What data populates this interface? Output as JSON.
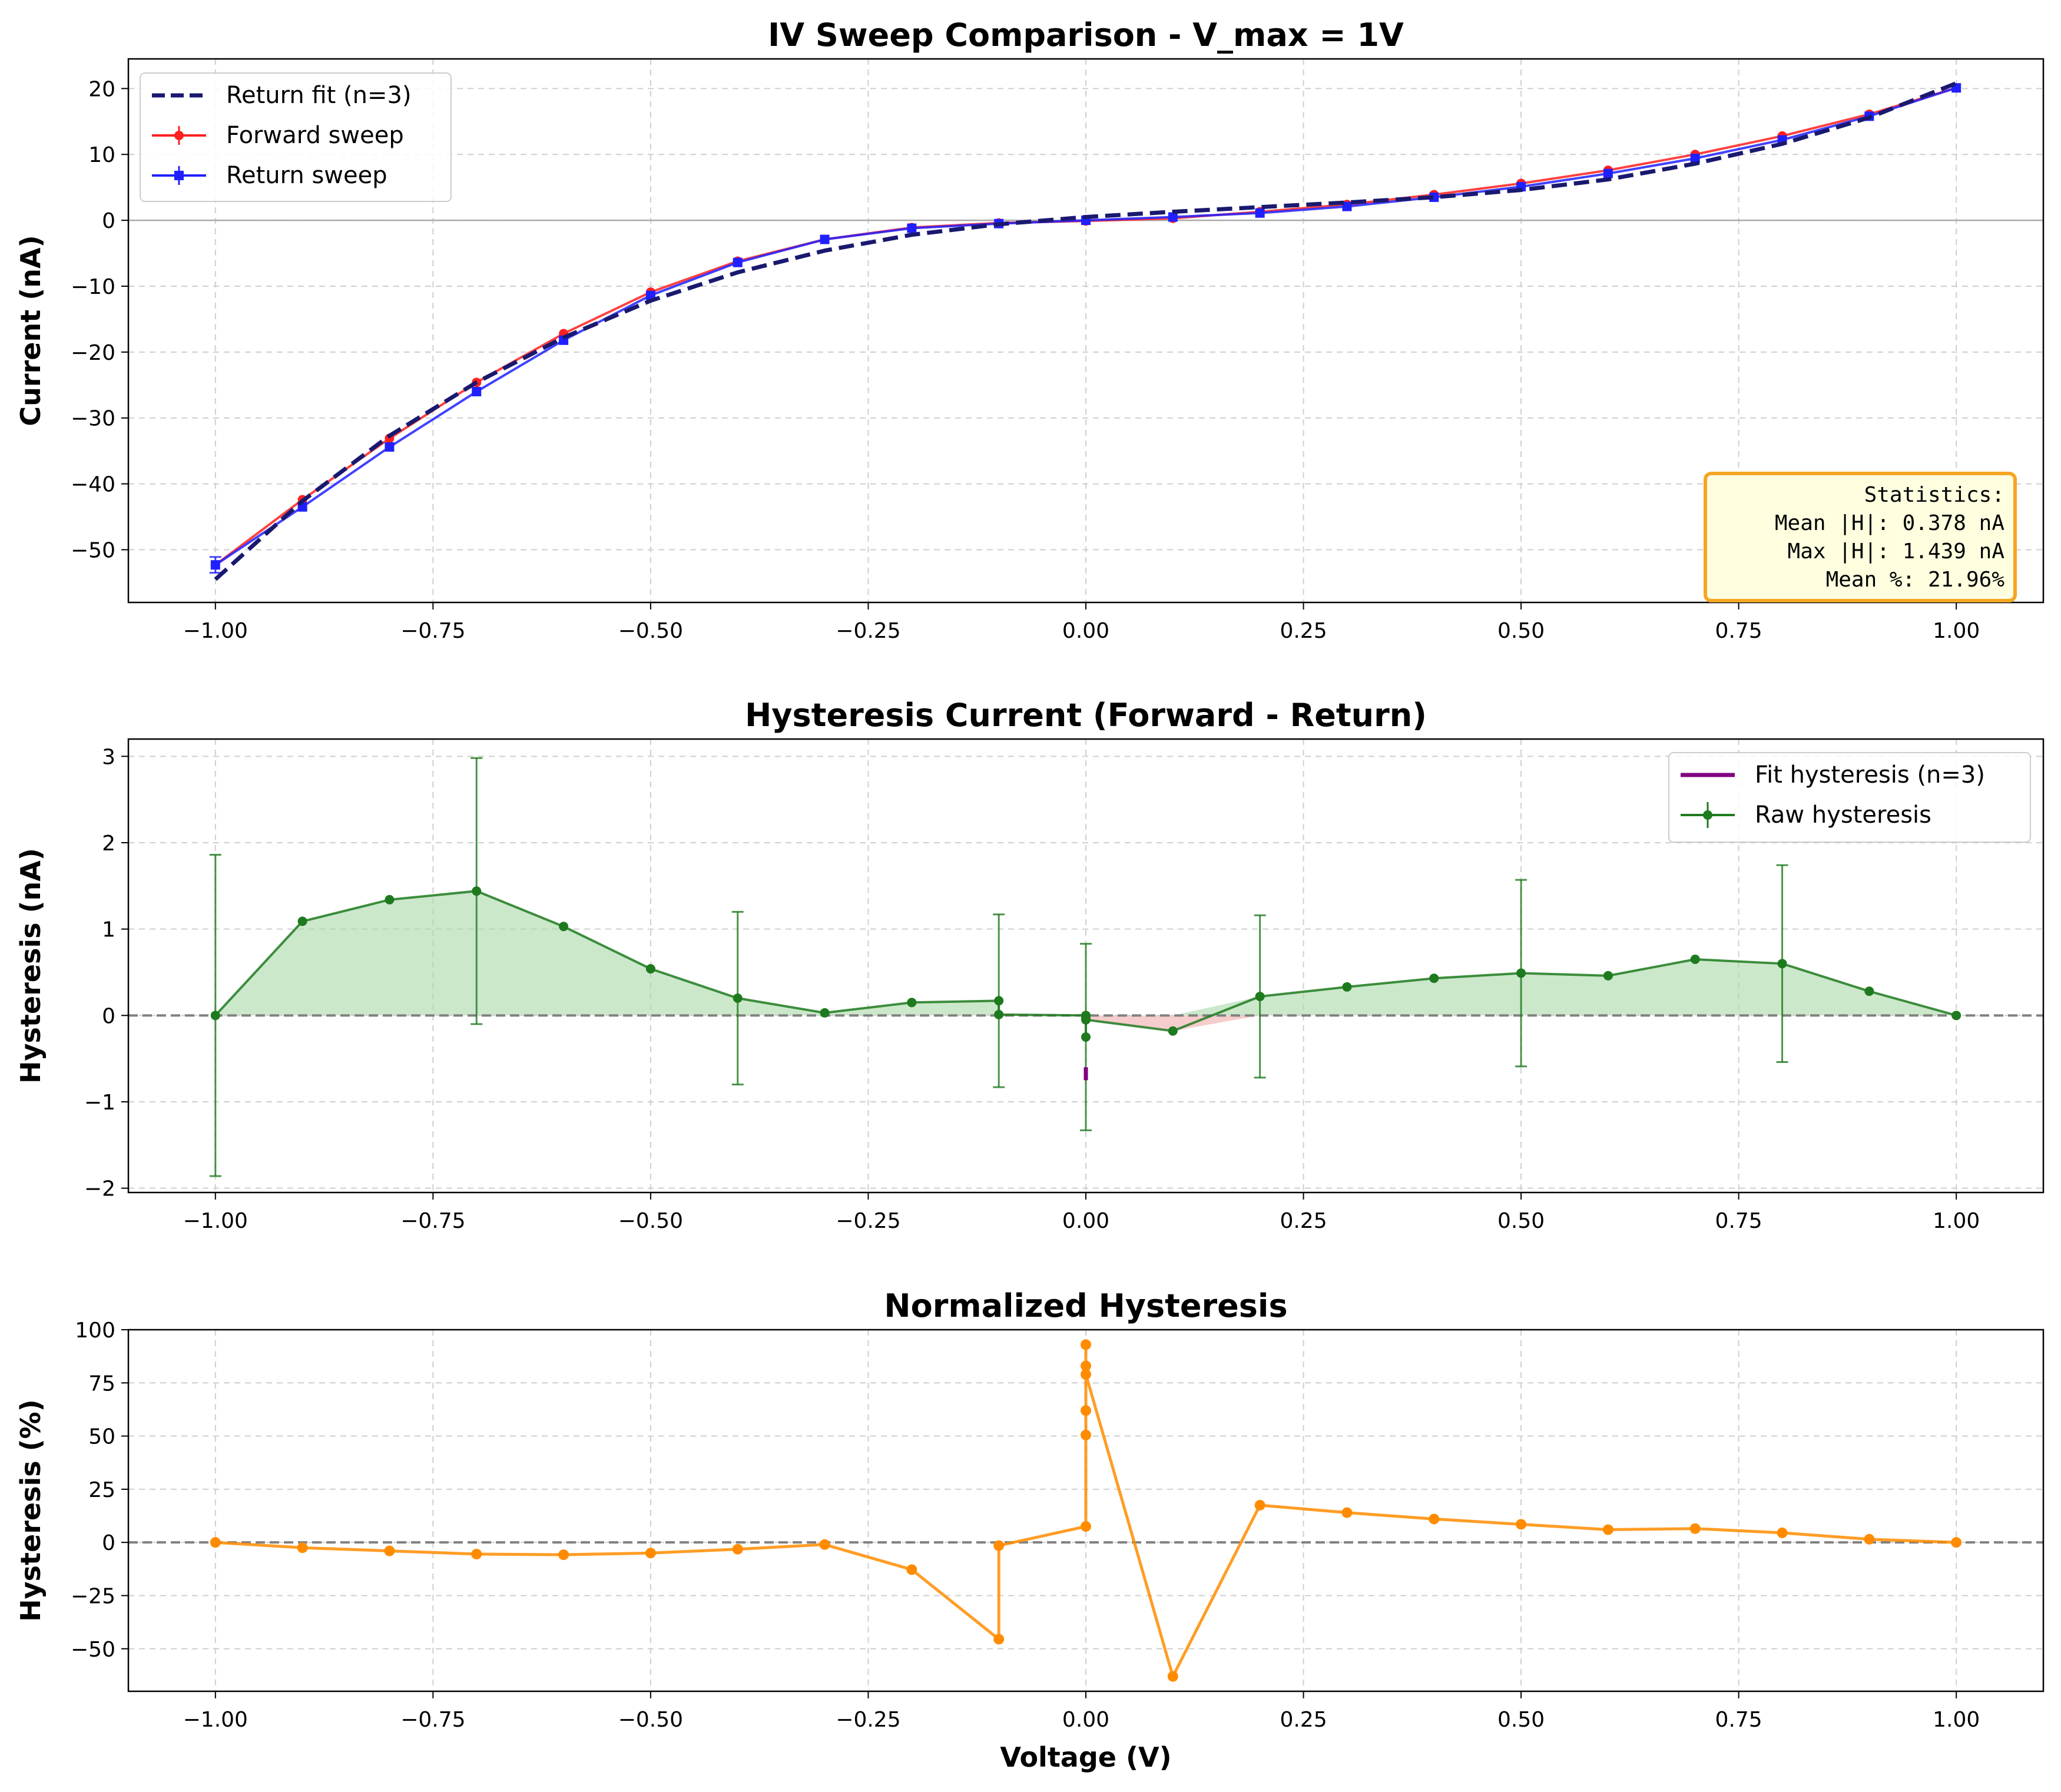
{
  "chart_data": [
    {
      "type": "line",
      "title": "IV Sweep Comparison - V_max = 1V",
      "xlabel": "",
      "ylabel": "Current (nA)",
      "xlim": [
        -1.1,
        1.1
      ],
      "ylim": [
        -58,
        24.5
      ],
      "xticks": [
        -1.0,
        -0.75,
        -0.5,
        -0.25,
        0.0,
        0.25,
        0.5,
        0.75,
        1.0
      ],
      "xtick_labels": [
        "−1.00",
        "−0.75",
        "−0.50",
        "−0.25",
        "0.00",
        "0.25",
        "0.50",
        "0.75",
        "1.00"
      ],
      "yticks": [
        -50,
        -40,
        -30,
        -20,
        -10,
        0,
        10,
        20
      ],
      "ytick_labels": [
        "−50",
        "−40",
        "−30",
        "−20",
        "−10",
        "0",
        "10",
        "20"
      ],
      "grid": true,
      "legend_position": "top-left",
      "reference_line_y": 0,
      "series": [
        {
          "name": "Return fit (n=3)",
          "style": "dashed",
          "color": "#191970",
          "x": [
            -1.0,
            -0.9,
            -0.8,
            -0.7,
            -0.6,
            -0.5,
            -0.4,
            -0.3,
            -0.2,
            -0.1,
            0.0,
            0.1,
            0.2,
            0.3,
            0.4,
            0.5,
            0.6,
            0.7,
            0.8,
            0.9,
            1.0
          ],
          "y": [
            -54.5,
            -42.6,
            -32.7,
            -24.6,
            -17.8,
            -12.2,
            -7.9,
            -4.6,
            -2.2,
            -0.6,
            0.5,
            1.3,
            2.0,
            2.7,
            3.5,
            4.6,
            6.2,
            8.6,
            11.6,
            15.6,
            20.8
          ]
        },
        {
          "name": "Forward sweep",
          "style": "solid",
          "color": "#ff2020",
          "x": [
            -1.0,
            -0.9,
            -0.8,
            -0.7,
            -0.6,
            -0.5,
            -0.4,
            -0.3,
            -0.2,
            -0.1,
            0.0,
            0.1,
            0.2,
            0.3,
            0.4,
            0.5,
            0.6,
            0.7,
            0.8,
            0.9,
            1.0
          ],
          "y": [
            -52.3,
            -42.4,
            -33.1,
            -24.6,
            -17.2,
            -10.9,
            -6.2,
            -2.9,
            -1.1,
            -0.4,
            -0.1,
            0.3,
            1.3,
            2.4,
            3.9,
            5.6,
            7.6,
            10.0,
            12.8,
            16.1,
            20.1
          ]
        },
        {
          "name": "Return sweep",
          "style": "solid",
          "color": "#2020ff",
          "x": [
            -1.0,
            -0.9,
            -0.8,
            -0.7,
            -0.6,
            -0.5,
            -0.4,
            -0.3,
            -0.2,
            -0.1,
            0.0,
            0.1,
            0.2,
            0.3,
            0.4,
            0.5,
            0.6,
            0.7,
            0.8,
            0.9,
            1.0
          ],
          "y": [
            -52.3,
            -43.5,
            -34.4,
            -26.0,
            -18.2,
            -11.4,
            -6.4,
            -2.9,
            -1.2,
            -0.5,
            0.0,
            0.5,
            1.1,
            2.1,
            3.5,
            5.1,
            7.1,
            9.4,
            12.2,
            15.8,
            20.1
          ]
        }
      ],
      "error_bars": {
        "series": "Return sweep",
        "x": -1.0,
        "y": -52.3,
        "err": 1.2
      },
      "annotation": {
        "title": "Statistics:",
        "lines": [
          "Mean |H|: 0.378 nA",
          "Max |H|:  1.439 nA",
          "Mean %:   21.96%"
        ],
        "position": "bottom-right"
      }
    },
    {
      "type": "line",
      "title": "Hysteresis Current (Forward - Return)",
      "xlabel": "",
      "ylabel": "Hysteresis (nA)",
      "xlim": [
        -1.1,
        1.1
      ],
      "ylim": [
        -2.05,
        3.2
      ],
      "xticks": [
        -1.0,
        -0.75,
        -0.5,
        -0.25,
        0.0,
        0.25,
        0.5,
        0.75,
        1.0
      ],
      "xtick_labels": [
        "−1.00",
        "−0.75",
        "−0.50",
        "−0.25",
        "0.00",
        "0.25",
        "0.50",
        "0.75",
        "1.00"
      ],
      "yticks": [
        -2,
        -1,
        0,
        1,
        2,
        3
      ],
      "ytick_labels": [
        "−2",
        "−1",
        "0",
        "1",
        "2",
        "3"
      ],
      "grid": true,
      "legend_position": "top-right",
      "reference_line_y": 0,
      "series": [
        {
          "name": "Fit hysteresis (n=3)",
          "style": "solid",
          "color": "#800080",
          "x": [
            0.0,
            0.0
          ],
          "y": [
            -0.6,
            -0.75
          ]
        },
        {
          "name": "Raw hysteresis",
          "style": "solid",
          "color": "#1e7a1e",
          "x": [
            -1.0,
            -0.9,
            -0.8,
            -0.7,
            -0.6,
            -0.5,
            -0.4,
            -0.3,
            -0.2,
            -0.1,
            -0.1,
            0.0,
            0.0,
            0.0,
            0.0,
            0.1,
            0.2,
            0.3,
            0.4,
            0.5,
            0.6,
            0.7,
            0.8,
            0.9,
            1.0
          ],
          "y": [
            0.0,
            1.09,
            1.34,
            1.44,
            1.03,
            0.54,
            0.2,
            0.03,
            0.15,
            0.17,
            0.01,
            0.0,
            -0.03,
            -0.25,
            -0.05,
            -0.18,
            0.22,
            0.33,
            0.43,
            0.49,
            0.46,
            0.65,
            0.6,
            0.28,
            0.0
          ]
        }
      ],
      "error_bars": [
        {
          "x": -1.0,
          "y": 0.0,
          "err": 1.86
        },
        {
          "x": -0.7,
          "y": 1.44,
          "err": 1.54
        },
        {
          "x": -0.4,
          "y": 0.2,
          "err": 1.0
        },
        {
          "x": -0.1,
          "y": 0.17,
          "err": 1.0
        },
        {
          "x": 0.0,
          "y": -0.25,
          "err": 1.08
        },
        {
          "x": 0.2,
          "y": 0.22,
          "err": 0.94
        },
        {
          "x": 0.5,
          "y": 0.49,
          "err": 1.08
        },
        {
          "x": 0.8,
          "y": 0.6,
          "err": 1.14
        }
      ]
    },
    {
      "type": "line",
      "title": "Normalized Hysteresis",
      "xlabel": "Voltage (V)",
      "ylabel": "Hysteresis (%)",
      "xlim": [
        -1.1,
        1.1
      ],
      "ylim": [
        -70,
        100
      ],
      "xticks": [
        -1.0,
        -0.75,
        -0.5,
        -0.25,
        0.0,
        0.25,
        0.5,
        0.75,
        1.0
      ],
      "xtick_labels": [
        "−1.00",
        "−0.75",
        "−0.50",
        "−0.25",
        "0.00",
        "0.25",
        "0.50",
        "0.75",
        "1.00"
      ],
      "yticks": [
        -50,
        -25,
        0,
        25,
        50,
        75,
        100
      ],
      "ytick_labels": [
        "−50",
        "−25",
        "0",
        "25",
        "50",
        "75",
        "100"
      ],
      "grid": true,
      "reference_line_y": 0,
      "series": [
        {
          "name": "Normalized hysteresis",
          "style": "solid",
          "color": "#ff8c00",
          "x": [
            -1.0,
            -0.9,
            -0.8,
            -0.7,
            -0.6,
            -0.5,
            -0.4,
            -0.3,
            -0.2,
            -0.1,
            -0.1,
            0.0,
            0.0,
            0.0,
            0.0,
            0.0,
            0.0,
            0.1,
            0.2,
            0.3,
            0.4,
            0.5,
            0.6,
            0.7,
            0.8,
            0.9,
            1.0
          ],
          "y": [
            0.0,
            -2.5,
            -4.0,
            -5.5,
            -5.8,
            -5.0,
            -3.2,
            -1.0,
            -12.8,
            -45.5,
            -1.5,
            7.5,
            50.5,
            62.0,
            83.0,
            93.0,
            79.0,
            -63.0,
            17.5,
            14.0,
            11.0,
            8.5,
            6.0,
            6.5,
            4.5,
            1.5,
            0.0
          ]
        }
      ]
    }
  ],
  "colors": {
    "forward": "#ff2020",
    "return": "#2020ff",
    "fit": "#191970",
    "fit_hysteresis": "#800080",
    "raw_hysteresis": "#1e7a1e",
    "fill_positive": "#a8d8a8",
    "fill_negative": "#f4b6b6",
    "normalized": "#ff8c00",
    "stats_box_fill": "#ffffe0",
    "stats_box_edge": "#f5a623"
  }
}
